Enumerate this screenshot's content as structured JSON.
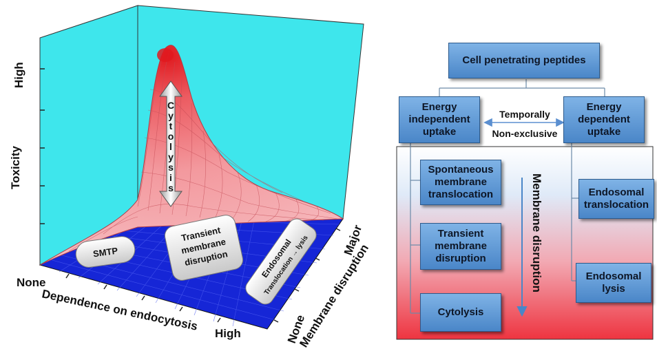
{
  "left_plot": {
    "y_axis_title": "Toxicity",
    "y_axis_high": "High",
    "x_axis_title": "Dependence on endocytosis",
    "x_axis_none": "None",
    "x_axis_high": "High",
    "z_axis_title": "Membrane disruption",
    "z_axis_none": "None",
    "z_axis_major": "Major",
    "peak_label": "Cytolysis",
    "regions": {
      "smtp": "SMTP",
      "transient_line1": "Transient",
      "transient_line2": "membrane",
      "transient_line3": "disruption",
      "endosomal_line1": "Endosomal",
      "endosomal_line2": "Translocation → lysis"
    },
    "colors": {
      "wall": "#3ee6ec",
      "floor": "#1626d6",
      "peak": "#e0191e",
      "surface": "#f4a9ad"
    }
  },
  "right_diagram": {
    "root": "Cell penetrating peptides",
    "energy_independent": "Energy\nindependent\nuptake",
    "energy_dependent": "Energy\ndependent\nuptake",
    "temporally": "Temporally",
    "non_exclusive": "Non-exclusive",
    "spontaneous": "Spontaneous\nmembrane\ntranslocation",
    "transient": "Transient\nmembrane\ndisruption",
    "cytolysis": "Cytolysis",
    "endosomal_translocation": "Endosomal\ntranslocation",
    "endosomal_lysis": "Endosomal\nlysis",
    "membrane_disruption": "Membrane disruption"
  }
}
